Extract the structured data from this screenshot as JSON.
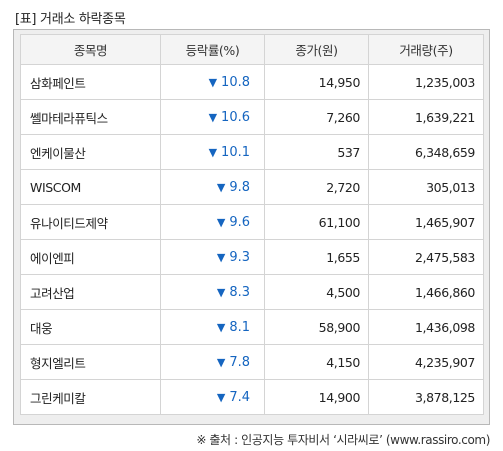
{
  "title": "[표] 거래소 하락종목",
  "table": {
    "headers": [
      "종목명",
      "등락률(%)",
      "종가(원)",
      "거래량(주)"
    ],
    "down_arrow": "▼",
    "rows": [
      {
        "name": "삼화페인트",
        "rate": "10.8",
        "close": "14,950",
        "volume": "1,235,003"
      },
      {
        "name": "쎌마테라퓨틱스",
        "rate": "10.6",
        "close": "7,260",
        "volume": "1,639,221"
      },
      {
        "name": "엔케이물산",
        "rate": "10.1",
        "close": "537",
        "volume": "6,348,659"
      },
      {
        "name": "WISCOM",
        "rate": "9.8",
        "close": "2,720",
        "volume": "305,013"
      },
      {
        "name": "유나이티드제약",
        "rate": "9.6",
        "close": "61,100",
        "volume": "1,465,907"
      },
      {
        "name": "에이엔피",
        "rate": "9.3",
        "close": "1,655",
        "volume": "2,475,583"
      },
      {
        "name": "고려산업",
        "rate": "8.3",
        "close": "4,500",
        "volume": "1,466,860"
      },
      {
        "name": "대웅",
        "rate": "8.1",
        "close": "58,900",
        "volume": "1,436,098"
      },
      {
        "name": "형지엘리트",
        "rate": "7.8",
        "close": "4,150",
        "volume": "4,235,907"
      },
      {
        "name": "그린케미칼",
        "rate": "7.4",
        "close": "14,900",
        "volume": "3,878,125"
      }
    ]
  },
  "source": "※ 출처 : 인공지능 투자비서 ‘시라씨로’ (www.rassiro.com)",
  "colors": {
    "rate_down": "#1565c0",
    "header_bg": "#f4f4f4",
    "frame_bg": "#eeeeee"
  }
}
